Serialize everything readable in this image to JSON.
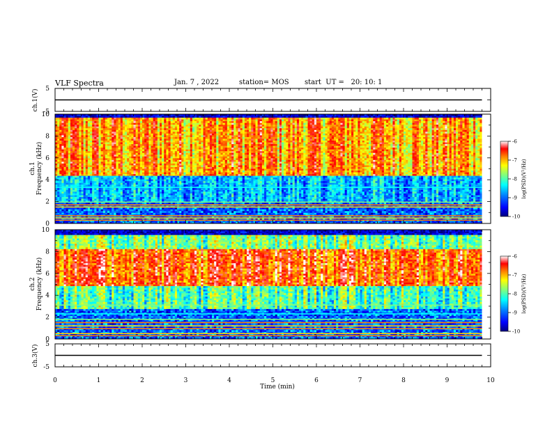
{
  "header": {
    "title": "VLF Spectra",
    "date": "Jan. 7 , 2022",
    "station": "station= MOS",
    "start_ut": "start  UT =   20: 10: 1"
  },
  "chart_data": [
    {
      "type": "line",
      "panel": "ch1-voltage",
      "ylabel": "ch.1(V)",
      "ylim": [
        -5,
        5
      ],
      "ytick_labels": [
        "5",
        "-5"
      ],
      "series": [
        {
          "x": [
            0,
            9.8
          ],
          "y": [
            0,
            0
          ]
        }
      ],
      "xlim": [
        0,
        10
      ]
    },
    {
      "type": "heatmap",
      "panel": "ch1-spectrogram",
      "ylabel": "ch.1\nFrequency (kHz)",
      "ylabel_lines": [
        "ch.1",
        "Frequency (kHz)"
      ],
      "ylim": [
        0,
        10
      ],
      "ytick_labels": [
        "0",
        "2",
        "4",
        "6",
        "8",
        "10"
      ],
      "xlim": [
        0,
        10
      ],
      "data_xlim": [
        0,
        9.8
      ],
      "colorbar": {
        "label": "log(PSD)(V²/Hz)",
        "range": [
          -10,
          -6
        ],
        "tick_labels": [
          "-6",
          "-7",
          "-8",
          "-9",
          "-10"
        ],
        "colors": [
          "#00007f",
          "#0000ff",
          "#007fff",
          "#00ffff",
          "#7fff7f",
          "#ffff00",
          "#ff7f00",
          "#ff0000",
          "#ffffff"
        ]
      },
      "constant_lines_khz": [
        0.3,
        0.5,
        0.7,
        1.5,
        1.7,
        1.95,
        3.3
      ],
      "constant_line_colors": [
        "#ff8000",
        "#ffd000",
        "#ff8000",
        "#ffd000",
        "#ff8000",
        "#7fff7f",
        "#00ffff"
      ]
    },
    {
      "type": "heatmap",
      "panel": "ch2-spectrogram",
      "ylabel": "ch.2\nFrequency (kHz)",
      "ylabel_lines": [
        "ch.2",
        "Frequency (kHz)"
      ],
      "ylim": [
        0,
        10
      ],
      "ytick_labels": [
        "0",
        "2",
        "4",
        "6",
        "8",
        "10"
      ],
      "xlim": [
        0,
        10
      ],
      "data_xlim": [
        0,
        9.8
      ],
      "colorbar": {
        "label": "log(PSD)(V²/Hz)",
        "range": [
          -10,
          -6
        ],
        "tick_labels": [
          "-6",
          "-7",
          "-8",
          "-9",
          "-10"
        ],
        "colors": [
          "#00007f",
          "#0000ff",
          "#007fff",
          "#00ffff",
          "#7fff7f",
          "#ffff00",
          "#ff7f00",
          "#ff0000",
          "#ffffff"
        ]
      },
      "constant_lines_khz": [
        0.3,
        0.5,
        0.95,
        1.2,
        1.5,
        1.8,
        2.3,
        3.1
      ],
      "constant_line_colors": [
        "#ff8000",
        "#ffd000",
        "#ff8000",
        "#ffd000",
        "#ff8000",
        "#7fff7f",
        "#00ffff",
        "#7fff7f"
      ]
    },
    {
      "type": "line",
      "panel": "ch3-voltage",
      "ylabel": "ch.3(V)",
      "ylim": [
        -5,
        5
      ],
      "ytick_labels": [
        "5",
        "-5"
      ],
      "series": [
        {
          "x": [
            0,
            9.8
          ],
          "y": [
            0,
            0
          ]
        }
      ],
      "xlim": [
        0,
        10
      ],
      "xlabel": "Time  (min)",
      "xtick_labels": [
        "0",
        "1",
        "2",
        "3",
        "4",
        "5",
        "6",
        "7",
        "8",
        "9",
        "10"
      ]
    }
  ]
}
